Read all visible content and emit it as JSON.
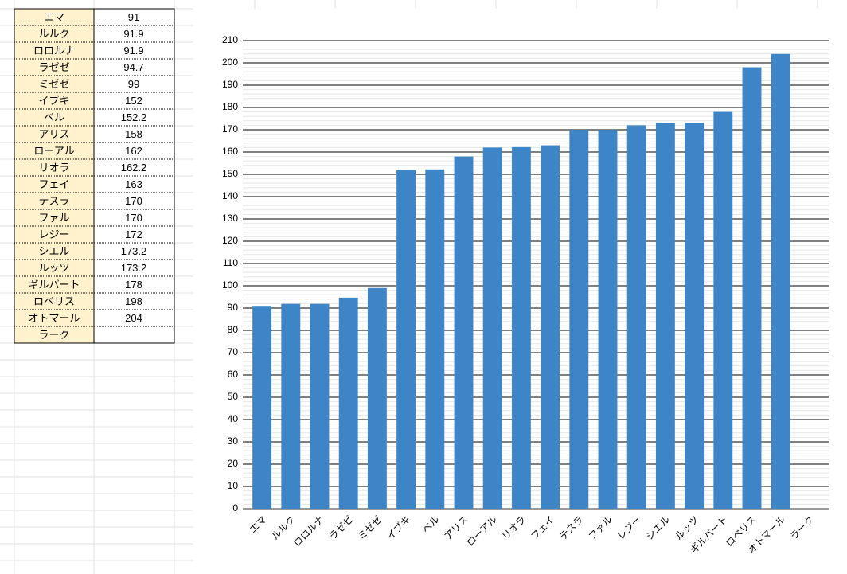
{
  "chart_data": {
    "type": "bar",
    "categories": [
      "エマ",
      "ルルク",
      "ロロルナ",
      "ラゼゼ",
      "ミゼゼ",
      "イブキ",
      "ベル",
      "アリス",
      "ローアル",
      "リオラ",
      "フェイ",
      "テスラ",
      "ファル",
      "レジー",
      "シエル",
      "ルッツ",
      "ギルバート",
      "ロベリス",
      "オトマール",
      "ラーク"
    ],
    "values": [
      91,
      91.9,
      91.9,
      94.7,
      99,
      152,
      152.2,
      158,
      162,
      162.2,
      163,
      170,
      170,
      172,
      173.2,
      173.2,
      178,
      198,
      204,
      null
    ],
    "color": "#3d85c6",
    "ylim": [
      0,
      210
    ],
    "yticks": [
      0,
      10,
      20,
      30,
      40,
      50,
      60,
      70,
      80,
      90,
      100,
      110,
      120,
      130,
      140,
      150,
      160,
      170,
      180,
      190,
      200,
      210
    ],
    "grid": true
  }
}
